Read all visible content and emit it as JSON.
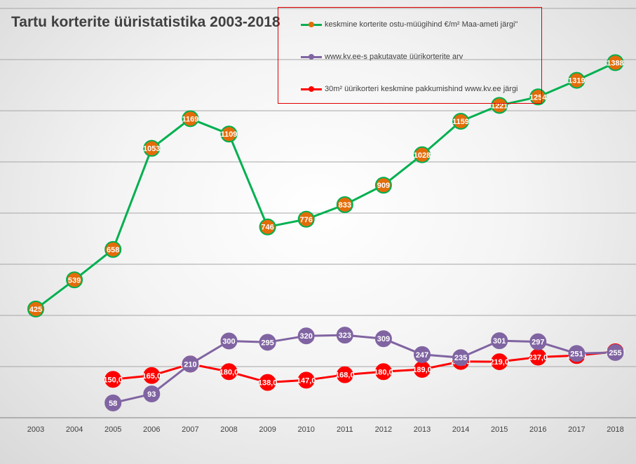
{
  "title": "Tartu korterite üüristatistika 2003-2018",
  "legend": {
    "items": [
      {
        "label": "keskmine korterite ostu-müügihind €/m² Maa-ameti järgi\"",
        "line_color": "#00b050",
        "dot_color": "#e36c09"
      },
      {
        "label": "www.kv.ee-s pakutavate üürikorterite arv",
        "line_color": "#8064a2",
        "dot_color": "#8064a2"
      },
      {
        "label": "30m² üürikorteri keskmine pakkumishind www.kv.ee järgi",
        "line_color": "#ff0000",
        "dot_color": "#ff0000"
      }
    ]
  },
  "chart_data": {
    "type": "line",
    "title": "Tartu korterite üüristatistika 2003-2018",
    "x": [
      "2003",
      "2004",
      "2005",
      "2006",
      "2007",
      "2008",
      "2009",
      "2010",
      "2011",
      "2012",
      "2013",
      "2014",
      "2015",
      "2016",
      "2017",
      "2018"
    ],
    "ylim": [
      0,
      1600
    ],
    "grid": true,
    "y_tick_labels_shown": false,
    "legend_position": "top-right",
    "series": [
      {
        "name": "keskmine korterite ostu-müügihind €/m² Maa-ameti järgi\"",
        "line_color": "#00b050",
        "marker_color": "#e36c09",
        "values": [
          425,
          539,
          658,
          1053,
          1169,
          1109,
          746,
          776,
          833,
          909,
          1028,
          1159,
          1221,
          1254,
          1319,
          1388
        ],
        "labels": [
          "425",
          "539",
          "658",
          "1053",
          "1169",
          "1109",
          "746",
          "776",
          "833",
          "909",
          "1028",
          "1159",
          "1221",
          "1254",
          "1319",
          "1388"
        ]
      },
      {
        "name": "www.kv.ee-s pakutavate üürikorterite arv",
        "line_color": "#8064a2",
        "marker_color": "#8064a2",
        "values": [
          null,
          null,
          58,
          93,
          210,
          300,
          295,
          320,
          323,
          309,
          247,
          235,
          301,
          297,
          251,
          255
        ],
        "labels": [
          "",
          "",
          "58",
          "93",
          "210",
          "300",
          "295",
          "320",
          "323",
          "309",
          "247",
          "235",
          "301",
          "297",
          "251",
          "255"
        ]
      },
      {
        "name": "30m² üürikorteri keskmine pakkumishind www.kv.ee järgi",
        "line_color": "#ff0000",
        "marker_color": "#ff0000",
        "values": [
          null,
          null,
          150,
          165,
          210,
          180,
          138,
          147,
          168,
          180,
          189,
          220,
          219,
          237,
          243,
          258
        ],
        "labels": [
          "",
          "",
          "150,0",
          "165,0",
          "210,0",
          "180,0",
          "138,0",
          "147,0",
          "168,0",
          "180,0",
          "189,0",
          "220,0",
          "219,0",
          "237,0",
          "243,0",
          "258,0"
        ]
      }
    ]
  }
}
